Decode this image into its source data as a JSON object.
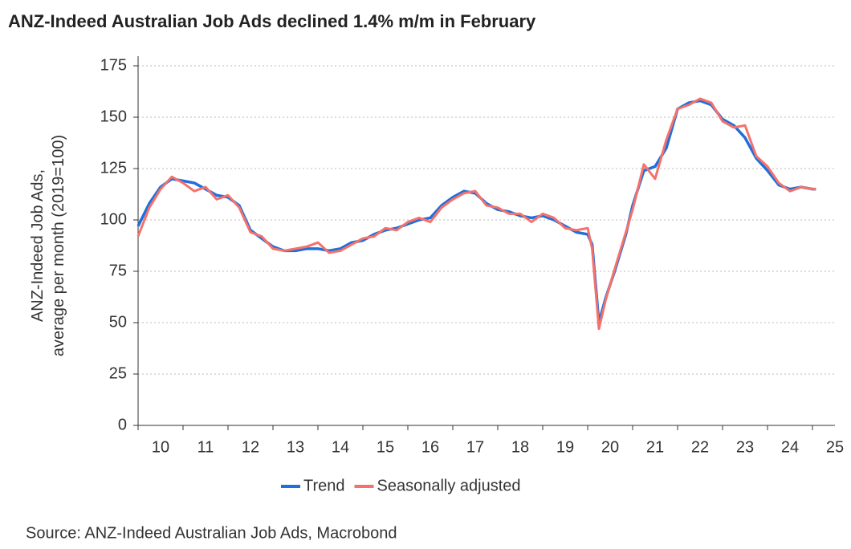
{
  "chart_data": {
    "type": "line",
    "title": "ANZ-Indeed Australian Job Ads declined 1.4% m/m in February",
    "ylabel": [
      "ANZ-Indeed Job Ads,",
      "average per month (2019=100)"
    ],
    "source": "Source: ANZ-Indeed Australian Job Ads, Macrobond",
    "x": [
      10.0,
      10.25,
      10.5,
      10.75,
      11.0,
      11.25,
      11.5,
      11.75,
      12.0,
      12.25,
      12.5,
      12.75,
      13.0,
      13.25,
      13.5,
      13.75,
      14.0,
      14.25,
      14.5,
      14.75,
      15.0,
      15.25,
      15.5,
      15.75,
      16.0,
      16.25,
      16.5,
      16.75,
      17.0,
      17.25,
      17.5,
      17.75,
      18.0,
      18.25,
      18.5,
      18.75,
      19.0,
      19.25,
      19.5,
      19.75,
      20.0,
      20.1,
      20.25,
      20.4,
      20.6,
      20.85,
      21.0,
      21.25,
      21.5,
      21.75,
      22.0,
      22.25,
      22.5,
      22.75,
      23.0,
      23.25,
      23.5,
      23.75,
      24.0,
      24.25,
      24.5,
      24.75,
      25.0,
      25.08
    ],
    "series": [
      {
        "name": "Trend",
        "color": "#1f6fdc",
        "values": [
          97,
          108,
          116,
          120,
          119,
          118,
          115,
          112,
          111,
          107,
          95,
          91,
          87,
          85,
          85,
          86,
          86,
          85,
          86,
          89,
          90,
          93,
          95,
          96,
          98,
          100,
          101,
          107,
          111,
          114,
          113,
          108,
          105,
          104,
          102,
          101,
          102,
          100,
          97,
          94,
          93,
          88,
          50,
          62,
          75,
          93,
          107,
          124,
          126,
          135,
          154,
          157,
          158,
          156,
          149,
          146,
          140,
          130,
          124,
          117,
          115,
          116,
          115,
          115
        ]
      },
      {
        "name": "Seasonally adjusted",
        "color": "#f4726b",
        "values": [
          92,
          106,
          115,
          121,
          118,
          114,
          116,
          110,
          112,
          106,
          94,
          92,
          86,
          85,
          86,
          87,
          89,
          84,
          85,
          88,
          91,
          92,
          96,
          95,
          99,
          101,
          99,
          106,
          110,
          113,
          114,
          107,
          106,
          103,
          103,
          99,
          103,
          101,
          96,
          95,
          96,
          86,
          47,
          61,
          76,
          94,
          105,
          127,
          120,
          139,
          154,
          156,
          159,
          157,
          148,
          145,
          146,
          131,
          126,
          118,
          114,
          116,
          115,
          115
        ]
      }
    ],
    "xlim": [
      10,
      25.5
    ],
    "xticks": [
      10,
      11,
      12,
      13,
      14,
      15,
      16,
      17,
      18,
      19,
      20,
      21,
      22,
      23,
      24,
      25
    ],
    "ylim": [
      0,
      175
    ],
    "yticks": [
      0,
      25,
      50,
      75,
      100,
      125,
      150,
      175
    ],
    "grid": true,
    "legend": "bottom"
  }
}
